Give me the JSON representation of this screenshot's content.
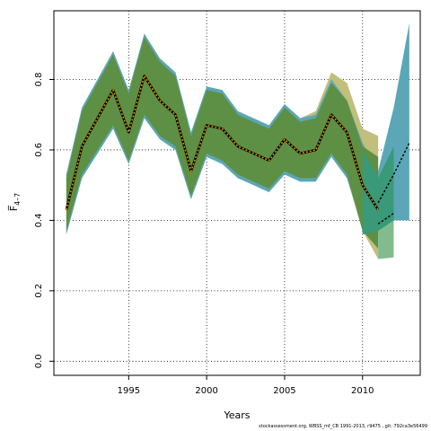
{
  "chart_data": {
    "type": "area",
    "xlabel": "Years",
    "ylabel": "F̅",
    "ylabel_sub": "4–7",
    "xlim": [
      1990.2,
      2013.7
    ],
    "ylim": [
      -0.04,
      0.995
    ],
    "x_ticks": [
      1995,
      2000,
      2005,
      2010
    ],
    "y_ticks": [
      0.0,
      0.2,
      0.4,
      0.6,
      0.8
    ],
    "y_tick_labels": [
      "0.0",
      "0.2",
      "0.4",
      "0.6",
      "0.8"
    ],
    "grid": true,
    "colors": {
      "olive": "#c2be7c",
      "teal": "#5ba7b7",
      "green": "#5d9044",
      "sea": "#3a9978",
      "mint": "#82bb8e",
      "line_black": "#000000",
      "line_orange": "#e08a00"
    },
    "bands": [
      {
        "color": "olive",
        "x": [
          1991,
          1992,
          1993,
          1994,
          1995,
          1996,
          1997,
          1998,
          1999,
          2000,
          2001,
          2002,
          2003,
          2004,
          2005,
          2006,
          2007,
          2008,
          2009,
          2010,
          2011
        ],
        "upper": [
          0.53,
          0.72,
          0.8,
          0.88,
          0.77,
          0.93,
          0.86,
          0.82,
          0.65,
          0.78,
          0.77,
          0.71,
          0.69,
          0.67,
          0.73,
          0.69,
          0.71,
          0.82,
          0.79,
          0.66,
          0.64
        ],
        "lower": [
          0.36,
          0.52,
          0.59,
          0.66,
          0.56,
          0.69,
          0.63,
          0.6,
          0.46,
          0.58,
          0.56,
          0.52,
          0.5,
          0.48,
          0.53,
          0.51,
          0.51,
          0.58,
          0.52,
          0.37,
          0.29
        ]
      },
      {
        "color": "teal",
        "x": [
          1991,
          1992,
          1993,
          1994,
          1995,
          1996,
          1997,
          1998,
          1999,
          2000,
          2001,
          2002,
          2003,
          2004,
          2005,
          2006,
          2007,
          2008,
          2009,
          2010,
          2011,
          2012,
          2013
        ],
        "upper": [
          0.53,
          0.72,
          0.8,
          0.88,
          0.77,
          0.93,
          0.86,
          0.82,
          0.65,
          0.78,
          0.77,
          0.71,
          0.69,
          0.67,
          0.73,
          0.69,
          0.7,
          0.8,
          0.74,
          0.62,
          0.54,
          0.72,
          0.96
        ],
        "lower": [
          0.36,
          0.52,
          0.59,
          0.66,
          0.56,
          0.69,
          0.63,
          0.6,
          0.46,
          0.58,
          0.56,
          0.52,
          0.5,
          0.48,
          0.53,
          0.51,
          0.51,
          0.58,
          0.52,
          0.38,
          0.36,
          0.4,
          0.4
        ]
      },
      {
        "color": "green",
        "x": [
          1991,
          1992,
          1993,
          1994,
          1995,
          1996,
          1997,
          1998,
          1999,
          2000,
          2001,
          2002,
          2003,
          2004,
          2005,
          2006,
          2007,
          2008,
          2009,
          2010,
          2011
        ],
        "upper": [
          0.52,
          0.71,
          0.79,
          0.87,
          0.76,
          0.92,
          0.85,
          0.81,
          0.64,
          0.77,
          0.76,
          0.7,
          0.68,
          0.66,
          0.72,
          0.68,
          0.69,
          0.79,
          0.74,
          0.61,
          0.58
        ],
        "lower": [
          0.37,
          0.53,
          0.6,
          0.67,
          0.57,
          0.7,
          0.64,
          0.61,
          0.47,
          0.59,
          0.57,
          0.53,
          0.51,
          0.49,
          0.54,
          0.52,
          0.52,
          0.59,
          0.53,
          0.37,
          0.32
        ]
      },
      {
        "color": "mint",
        "x": [
          2011,
          2012
        ],
        "upper": [
          0.52,
          0.55
        ],
        "lower": [
          0.29,
          0.295
        ]
      },
      {
        "color": "sea",
        "x": [
          2010,
          2011,
          2012
        ],
        "upper": [
          0.6,
          0.52,
          0.61
        ],
        "lower": [
          0.36,
          0.37,
          0.4
        ]
      }
    ],
    "lines": [
      {
        "x": [
          1991,
          1992,
          1993,
          1994,
          1995,
          1996,
          1997,
          1998,
          1999,
          2000,
          2001,
          2002,
          2003,
          2004,
          2005,
          2006,
          2007,
          2008,
          2009,
          2010,
          2011
        ],
        "y": [
          0.43,
          0.61,
          0.69,
          0.77,
          0.65,
          0.81,
          0.74,
          0.7,
          0.54,
          0.67,
          0.66,
          0.61,
          0.59,
          0.57,
          0.63,
          0.59,
          0.6,
          0.7,
          0.65,
          0.5,
          0.43
        ],
        "color": "line_orange",
        "style": "dotted-double"
      },
      {
        "x": [
          2011,
          2012,
          2013
        ],
        "y": [
          0.45,
          0.53,
          0.62
        ],
        "color": "line_black",
        "style": "dashed"
      },
      {
        "x": [
          2011,
          2012
        ],
        "y": [
          0.39,
          0.42
        ],
        "color": "line_black",
        "style": "dashed"
      }
    ]
  },
  "footer": {
    "text": "stockassessment.org, WBSS_mf_CB 1991-2013, r9475 , git: 792ca3e56499"
  }
}
